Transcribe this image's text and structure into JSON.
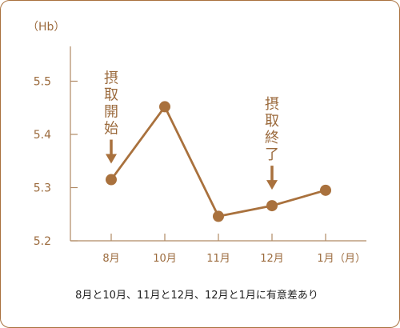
{
  "chart_data": {
    "type": "line",
    "ylabel": "（Hb）",
    "x_unit": "（月）",
    "categories": [
      "8月",
      "10月",
      "11月",
      "12月",
      "1月"
    ],
    "series": [
      {
        "values": [
          5.315,
          5.452,
          5.246,
          5.266,
          5.295
        ],
        "color": "#a9713d"
      }
    ],
    "ylim": [
      5.2,
      5.55
    ],
    "yticks": [
      "5.2",
      "5.3",
      "5.4",
      "5.5"
    ],
    "grid": false,
    "annotations": [
      {
        "text": "摂取開始",
        "category_index": 0
      },
      {
        "text": "摂取終了",
        "category_index": 3
      }
    ],
    "note": "8月と10月、11月と12月、12月と1月に有意差あり"
  }
}
